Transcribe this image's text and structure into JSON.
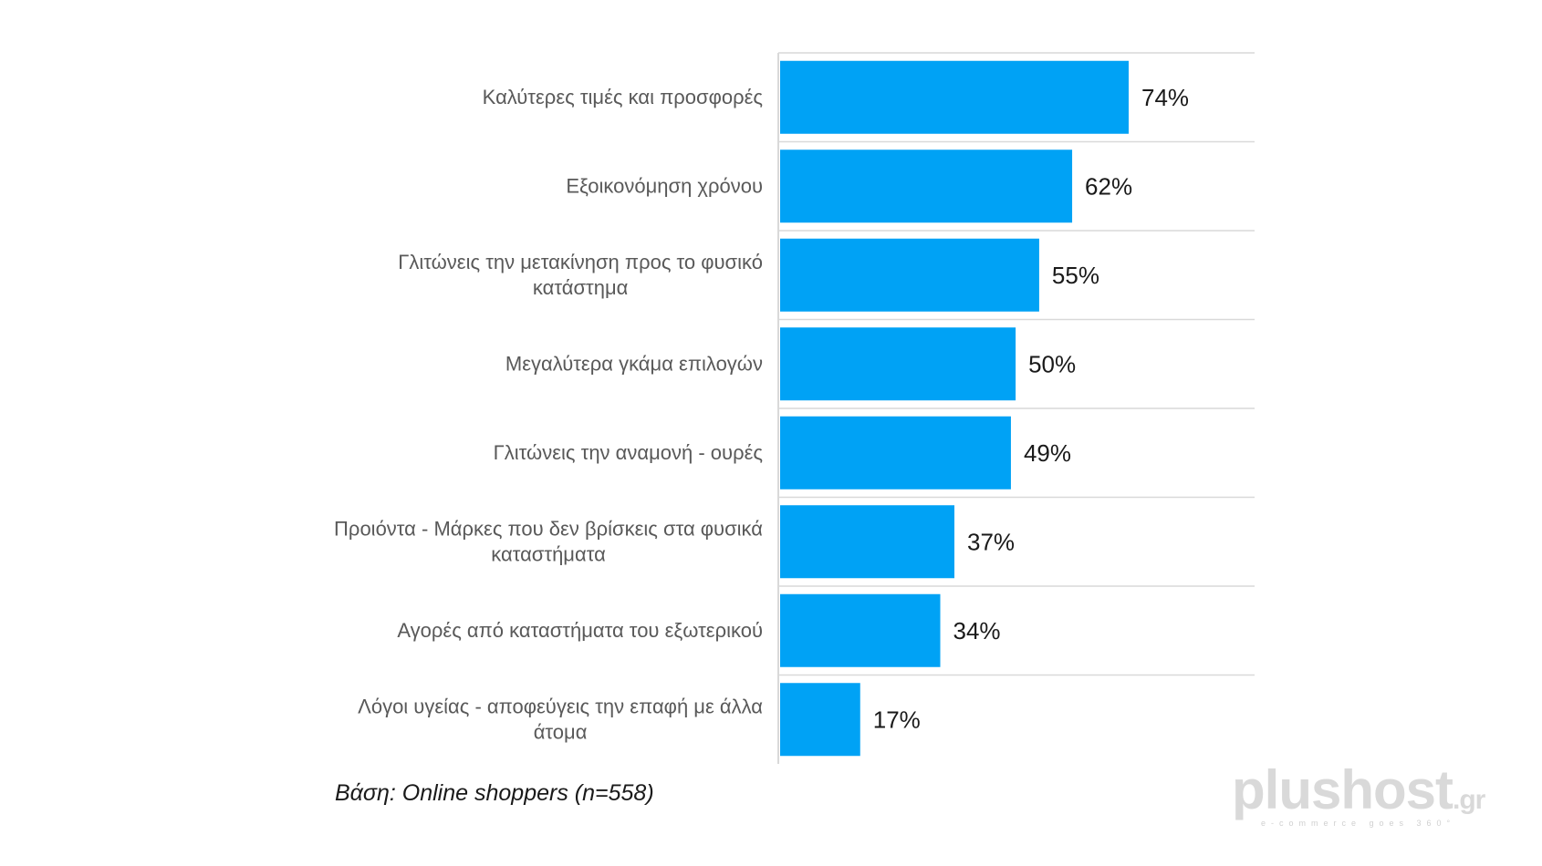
{
  "chart_data": {
    "type": "bar",
    "orientation": "horizontal",
    "categories": [
      "Καλύτερες τιμές και προσφορές",
      "Εξοικονόμηση χρόνου",
      "Γλιτώνεις την μετακίνηση προς το φυσικό κατάστημα",
      "Μεγαλύτερα γκάμα επιλογών",
      "Γλιτώνεις την αναμονή - ουρές",
      "Προιόντα - Μάρκες που δεν βρίσκεις στα φυσικά καταστήματα",
      "Αγορές από καταστήματα του εξωτερικού",
      "Λόγοι υγείας - αποφεύγεις την επαφή με άλλα άτομα"
    ],
    "category_lines": [
      [
        "Καλύτερες τιμές και προσφορές"
      ],
      [
        "Εξοικονόμηση χρόνου"
      ],
      [
        "Γλιτώνεις την μετακίνηση προς το φυσικό",
        "κατάστημα"
      ],
      [
        "Μεγαλύτερα γκάμα επιλογών"
      ],
      [
        "Γλιτώνεις την αναμονή - ουρές"
      ],
      [
        "Προιόντα - Μάρκες που δεν βρίσκεις στα φυσικά",
        "καταστήματα"
      ],
      [
        "Αγορές από καταστήματα του εξωτερικού"
      ],
      [
        "Λόγοι υγείας - αποφεύγεις την επαφή με άλλα",
        "άτομα"
      ]
    ],
    "values": [
      74,
      62,
      55,
      50,
      49,
      37,
      34,
      17
    ],
    "value_labels": [
      "74%",
      "62%",
      "55%",
      "50%",
      "49%",
      "37%",
      "34%",
      "17%"
    ],
    "xlim": [
      0,
      100
    ],
    "bar_color": "#00a2f5",
    "gridline_color": "#d9d9d9",
    "grid": "horizontal separators",
    "legend": "none"
  },
  "footnote": "Βάση: Online shoppers (n=558)",
  "logo": {
    "word": "plushost",
    "tld": ".gr",
    "tagline": "e-commerce goes 360°"
  }
}
